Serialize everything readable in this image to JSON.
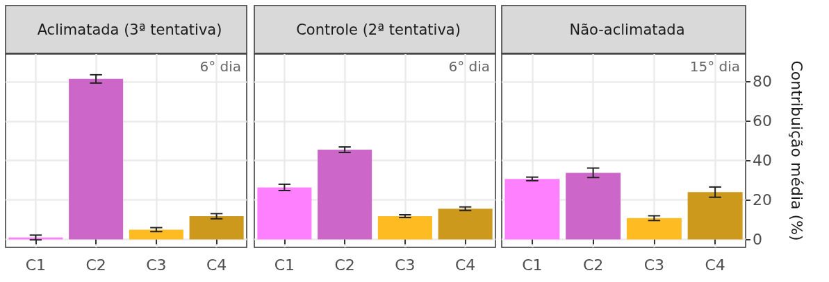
{
  "chart_data": [
    {
      "type": "bar",
      "title": "Aclimatada (3ª tentativa)",
      "categories": [
        "C1",
        "C2",
        "C3",
        "C4"
      ],
      "values": [
        1.0,
        81.4,
        5.0,
        11.8
      ],
      "errors": [
        1.2,
        2.1,
        1.0,
        1.3
      ],
      "colors": [
        "#ff80ff",
        "#cc66c8",
        "#ffbb22",
        "#cc991c"
      ],
      "ylim": [
        -4,
        94
      ],
      "yticks": [
        0,
        20,
        40,
        60,
        80
      ],
      "grid": true,
      "tick_labels": "x",
      "annotations": [
        "6° dia"
      ]
    },
    {
      "type": "bar",
      "title": "Controle (2ª tentativa)",
      "categories": [
        "C1",
        "C2",
        "C3",
        "C4"
      ],
      "values": [
        26.4,
        45.5,
        11.8,
        15.6
      ],
      "errors": [
        1.6,
        1.4,
        0.7,
        0.9
      ],
      "colors": [
        "#ff80ff",
        "#cc66c8",
        "#ffbb22",
        "#cc991c"
      ],
      "ylim": [
        -4,
        94
      ],
      "yticks": [
        0,
        20,
        40,
        60,
        80
      ],
      "grid": true,
      "tick_labels": "x",
      "annotations": [
        "6° dia"
      ]
    },
    {
      "type": "bar",
      "title": "Não-aclimatada",
      "ylabel": "Contribuição média (%)",
      "categories": [
        "C1",
        "C2",
        "C3",
        "C4"
      ],
      "values": [
        30.7,
        33.8,
        10.8,
        24.0
      ],
      "errors": [
        0.9,
        2.4,
        1.2,
        2.6
      ],
      "colors": [
        "#ff80ff",
        "#cc66c8",
        "#ffbb22",
        "#cc991c"
      ],
      "ylim": [
        -4,
        94
      ],
      "yticks": [
        0,
        20,
        40,
        60,
        80
      ],
      "grid": true,
      "annotations": [
        "15° dia"
      ]
    }
  ]
}
